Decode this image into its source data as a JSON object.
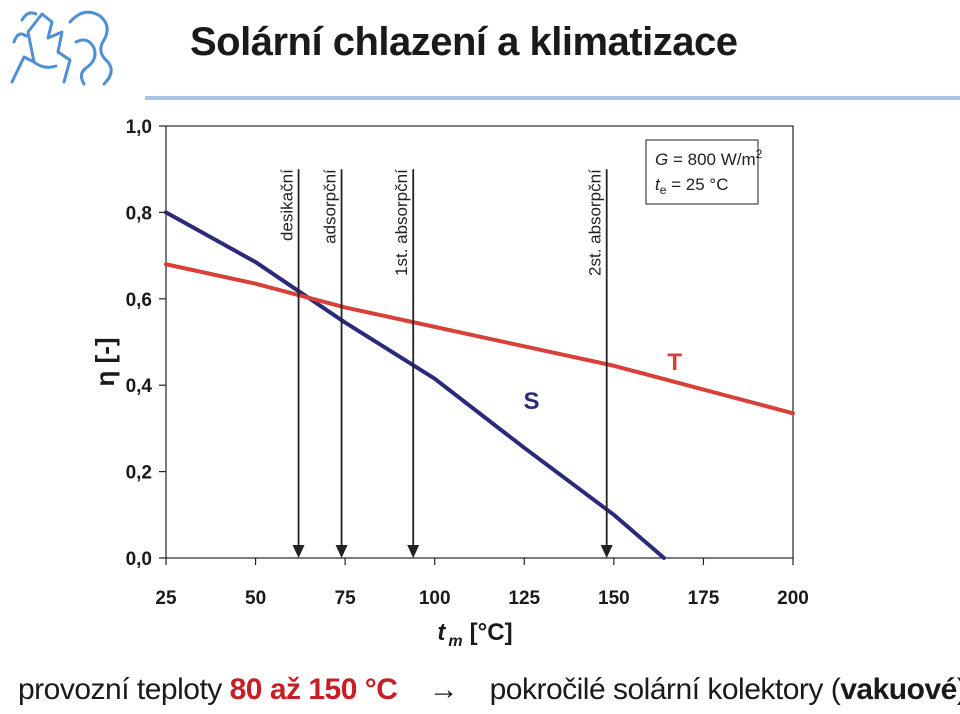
{
  "header": {
    "title": "Solární chlazení a klimatizace"
  },
  "colors": {
    "accent": "#c42026",
    "series_S": "#2b2a7a",
    "series_T": "#d8403a",
    "rule": "#a9c4e4",
    "logo": "#4f8fd6"
  },
  "chart_data": {
    "type": "line",
    "xlabel": {
      "main": "t",
      "sub": "m",
      "unit": "[°C]"
    },
    "ylabel": "η [-]",
    "xlim": [
      25,
      200
    ],
    "ylim": [
      0.0,
      1.0
    ],
    "x_ticks": [
      25,
      50,
      75,
      100,
      125,
      150,
      175,
      200
    ],
    "y_ticks": [
      0.0,
      0.2,
      0.4,
      0.6,
      0.8,
      1.0
    ],
    "x_tick_labels": [
      "25",
      "50",
      "75",
      "100",
      "125",
      "150",
      "175",
      "200"
    ],
    "y_tick_labels": [
      "0,0",
      "0,2",
      "0,4",
      "0,6",
      "0,8",
      "1,0"
    ],
    "grid": false,
    "series": [
      {
        "name": "S",
        "color": "#2b2a7a",
        "x": [
          25,
          50,
          75,
          100,
          125,
          150,
          164
        ],
        "y": [
          0.8,
          0.685,
          0.545,
          0.415,
          0.255,
          0.1,
          0.0
        ]
      },
      {
        "name": "T",
        "color": "#d8403a",
        "x": [
          25,
          50,
          75,
          100,
          125,
          150,
          175,
          200
        ],
        "y": [
          0.68,
          0.635,
          0.58,
          0.535,
          0.49,
          0.445,
          0.39,
          0.335
        ]
      }
    ],
    "markers": [
      {
        "label": "desikační",
        "x": 62,
        "top_y": 0.9
      },
      {
        "label": "adsorpční",
        "x": 74,
        "top_y": 0.9
      },
      {
        "label": "1st. absorpční",
        "x": 94,
        "top_y": 0.9
      },
      {
        "label": "2st. absorpční",
        "x": 148,
        "top_y": 0.9
      }
    ],
    "conditions": {
      "line1": {
        "var": "G",
        "text": " = 800 W/m",
        "sup": "2"
      },
      "line2": {
        "var": "t",
        "sub": "e",
        "text": " = 25 °C"
      }
    },
    "series_label_positions": [
      {
        "name": "S",
        "x": 127,
        "y": 0.345
      },
      {
        "name": "T",
        "x": 167,
        "y": 0.435
      }
    ]
  },
  "footer": {
    "part1": "provozní teploty ",
    "highlight": "80 až 150 °C",
    "arrow": "    →    ",
    "part2": "pokročilé solární kolektory (",
    "bold": "vakuové",
    "part3": ")"
  }
}
